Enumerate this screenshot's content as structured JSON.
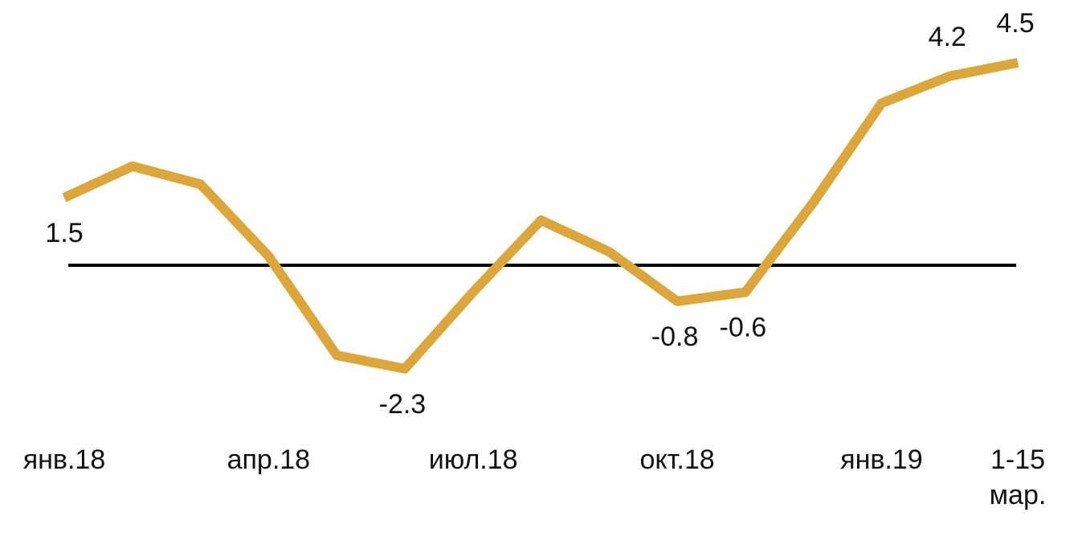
{
  "chart_data": {
    "type": "line",
    "categories": [
      "янв.18",
      null,
      null,
      "апр.18",
      null,
      null,
      "июл.18",
      null,
      null,
      "окт.18",
      null,
      null,
      "янв.19",
      null,
      "1-15 мар."
    ],
    "series": [
      {
        "color": "#dba73a",
        "values": [
          1.5,
          2.2,
          1.8,
          0.2,
          -2.0,
          -2.3,
          -0.6,
          1.0,
          0.3,
          -0.8,
          -0.6,
          1.4,
          3.6,
          4.2,
          4.5
        ],
        "value_labels": [
          "1.5",
          null,
          null,
          null,
          null,
          "-2.3",
          null,
          null,
          null,
          "-0.8",
          "-0.6",
          null,
          null,
          "4.2",
          "4.5"
        ]
      }
    ],
    "ylim": [
      -3,
      5
    ]
  }
}
